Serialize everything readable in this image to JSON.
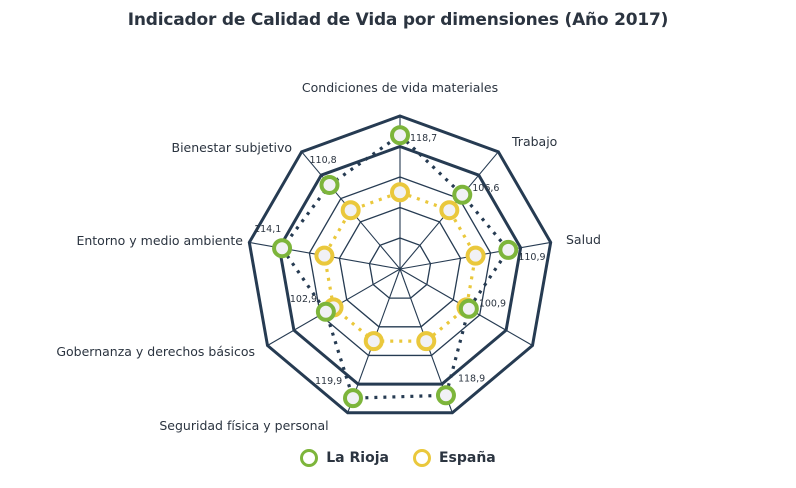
{
  "chart_data": {
    "type": "radar",
    "title": "Indicador de Calidad de Vida por dimensiones (Año 2017)",
    "categories": [
      "Condiciones de vida materiales",
      "Trabajo",
      "Salud",
      "",
      "",
      "Seguridad física y personal",
      "Gobernanza y derechos básicos",
      "Entorno y medio ambiente",
      "Bienestar subjetivo"
    ],
    "series": [
      {
        "name": "La Rioja",
        "color": "#7db53b",
        "line_color": "#263b52",
        "values": [
          118.7,
          106.6,
          110.9,
          100.9,
          118.9,
          119.9,
          102.9,
          114.1,
          110.8
        ],
        "value_labels": [
          "118,7",
          "106,6",
          "110,9",
          "100,9",
          "118,9",
          "119,9",
          "102,9",
          "114,1",
          "110,8"
        ]
      },
      {
        "name": "España",
        "color": "#eac83c",
        "line_color": "#eac83c",
        "values": [
          100,
          100,
          100,
          100,
          100,
          100,
          100,
          100,
          100
        ]
      }
    ],
    "rings": [
      85,
      95,
      105,
      115,
      125
    ],
    "rlim": [
      75,
      125
    ],
    "legend_position": "bottom",
    "grid": true
  },
  "legend": {
    "items": [
      {
        "label": "La Rioja",
        "color": "#7db53b"
      },
      {
        "label": "España",
        "color": "#eac83c"
      }
    ]
  }
}
